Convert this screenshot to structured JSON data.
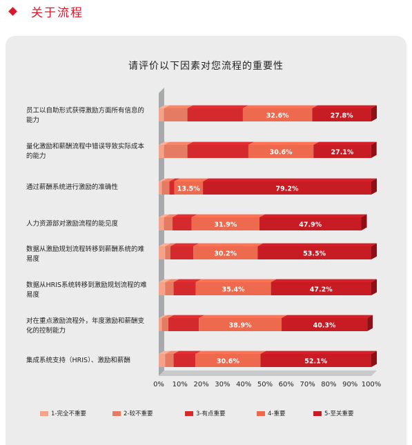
{
  "header": {
    "title": "关于流程"
  },
  "chart_data": {
    "type": "bar",
    "stacked": true,
    "orientation": "horizontal",
    "title": "请评价以下因素对您流程的重要性",
    "x_ticks": [
      "0%",
      "10%",
      "20%",
      "30%",
      "40%",
      "50%",
      "60%",
      "70%",
      "80%",
      "90%",
      "100%"
    ],
    "xlim": [
      0,
      100
    ],
    "categories": [
      "员工以自助形式获得激励方面所有信息的能力",
      "量化激励和薪酬流程中错误导致实际成本的能力",
      "通过薪酬系统进行激励的准确性",
      "人力资源部对激励流程的能见度",
      "数据从激励规划流程转移到薪酬系统的难易度",
      "数据从HRIS系统转移到激励规划流程的难易度",
      "对在重点激励流程外，年度激励和薪酬变化的控制能力",
      "集成系统支持（HRIS）、激励和薪酬"
    ],
    "series": [
      {
        "name": "1-完全不重要",
        "color": "#f4a38a",
        "values": [
          2.5,
          2.5,
          1.5,
          2.5,
          3.0,
          3.0,
          1.5,
          3.0
        ]
      },
      {
        "name": "2-较不重要",
        "color": "#e57b62",
        "values": [
          11.0,
          11.0,
          3.5,
          4.0,
          2.5,
          4.0,
          3.0,
          4.0
        ]
      },
      {
        "name": "3-有点重要",
        "color": "#d42a2e",
        "values": [
          26.1,
          28.7,
          2.3,
          9.0,
          10.8,
          10.4,
          14.4,
          10.3
        ]
      },
      {
        "name": "4-重要",
        "color": "#ee6a4e",
        "values": [
          32.6,
          30.6,
          13.5,
          31.9,
          30.2,
          35.4,
          38.9,
          30.6
        ]
      },
      {
        "name": "5-至关重要",
        "color": "#c81c25",
        "values": [
          27.8,
          27.1,
          79.2,
          47.9,
          53.5,
          47.2,
          40.3,
          52.1
        ]
      }
    ],
    "data_labels": [
      [
        "",
        "",
        "",
        "32.6%",
        "27.8%"
      ],
      [
        "",
        "",
        "",
        "30.6%",
        "27.1%"
      ],
      [
        "",
        "",
        "",
        "13.5%",
        "79.2%"
      ],
      [
        "",
        "",
        "",
        "31.9%",
        "47.9%"
      ],
      [
        "",
        "",
        "",
        "30.2%",
        "53.5%"
      ],
      [
        "",
        "",
        "",
        "35.4%",
        "47.2%"
      ],
      [
        "",
        "",
        "",
        "38.9%",
        "40.3%"
      ],
      [
        "",
        "",
        "",
        "30.6%",
        "52.1%"
      ]
    ],
    "legend_position": "bottom",
    "grid": false
  },
  "colors": {
    "accent": "#d7192b",
    "panel": "#ececec",
    "axis_wall": "#a7a9ac"
  }
}
